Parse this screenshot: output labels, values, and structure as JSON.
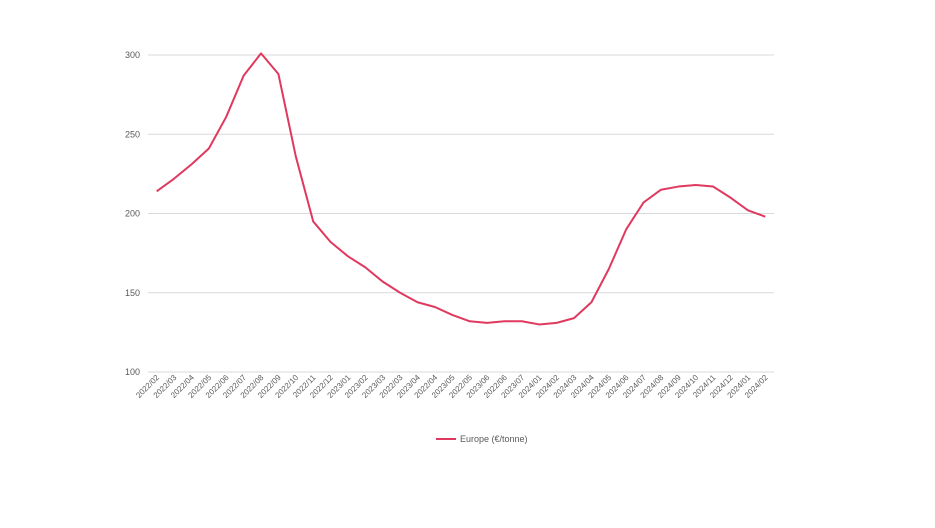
{
  "chart_data": {
    "type": "line",
    "categories": [
      "2022/02",
      "2022/03",
      "2022/04",
      "2022/05",
      "2022/06",
      "2022/07",
      "2022/08",
      "2022/09",
      "2022/10",
      "2022/11",
      "2022/12",
      "2023/01",
      "2023/02",
      "2023/03",
      "2022/03",
      "2023/04",
      "2022/04",
      "2023/05",
      "2022/05",
      "2023/06",
      "2022/06",
      "2023/07",
      "2024/01",
      "2024/02",
      "2024/03",
      "2024/04",
      "2024/05",
      "2024/06",
      "2024/07",
      "2024/08",
      "2024/09",
      "2024/10",
      "2024/11",
      "2024/12",
      "2024/01",
      "2024/02"
    ],
    "series": [
      {
        "name": "Europe (€/tonne)",
        "color": "#e0395f",
        "values": [
          214,
          222,
          231,
          241,
          261,
          287,
          301,
          288,
          236,
          195,
          182,
          173,
          166,
          157,
          150,
          144,
          141,
          136,
          132,
          131,
          132,
          132,
          130,
          131,
          134,
          144,
          165,
          190,
          207,
          215,
          217,
          218,
          217,
          210,
          202,
          198
        ]
      }
    ],
    "ylim": [
      100,
      300
    ],
    "yticks": [
      100,
      150,
      200,
      250,
      300
    ],
    "grid": true,
    "legend": "bottom"
  }
}
